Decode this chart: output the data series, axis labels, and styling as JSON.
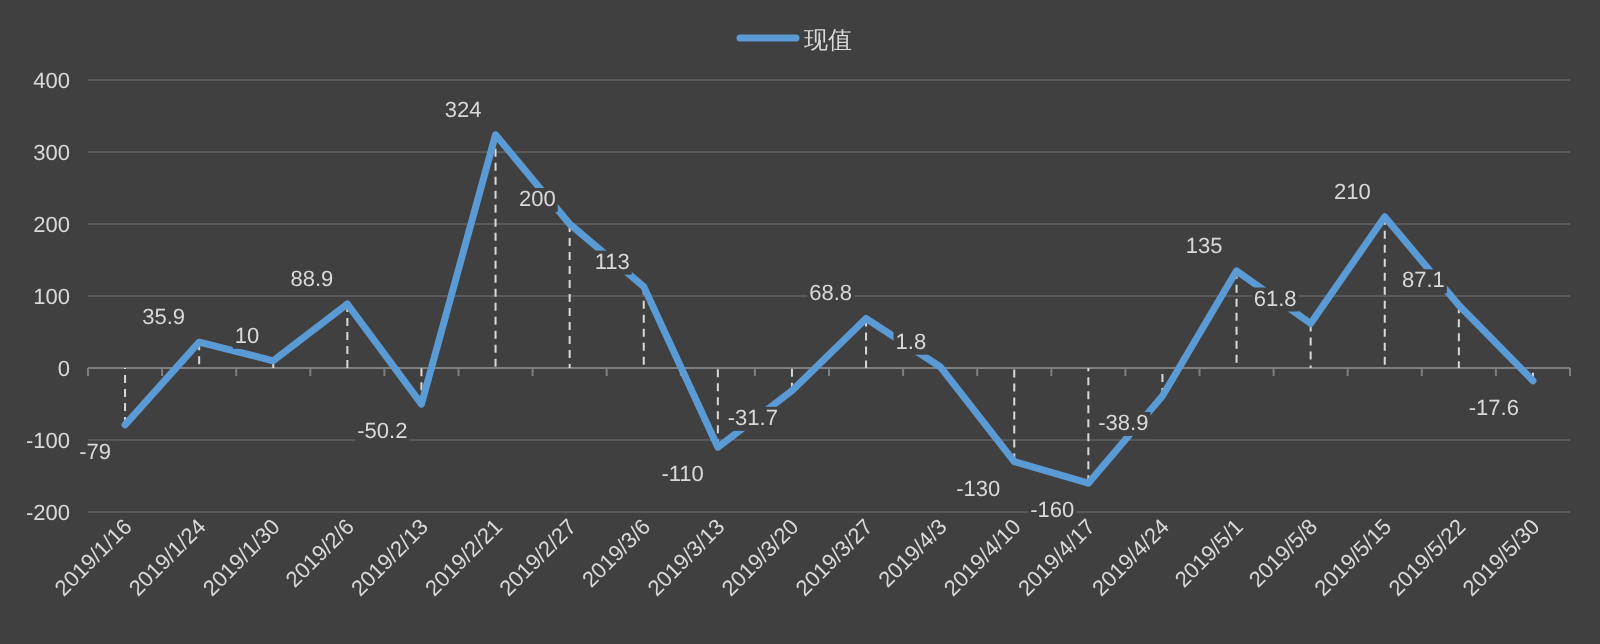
{
  "chart_data": {
    "type": "line",
    "categories": [
      "2019/1/16",
      "2019/1/24",
      "2019/1/30",
      "2019/2/6",
      "2019/2/13",
      "2019/2/21",
      "2019/2/27",
      "2019/3/6",
      "2019/3/13",
      "2019/3/20",
      "2019/3/27",
      "2019/4/3",
      "2019/4/10",
      "2019/4/17",
      "2019/4/24",
      "2019/5/1",
      "2019/5/8",
      "2019/5/15",
      "2019/5/22",
      "2019/5/30"
    ],
    "series": [
      {
        "name": "现值",
        "color": "#5b9bd5",
        "values": [
          -79,
          35.9,
          10,
          88.9,
          -50.2,
          324,
          200,
          113,
          -110,
          -31.7,
          68.8,
          1.8,
          -130,
          -160,
          -38.9,
          135,
          61.8,
          210,
          87.1,
          -17.6
        ]
      }
    ],
    "ylim": [
      -200,
      400
    ],
    "yticks": [
      -200,
      -100,
      0,
      100,
      200,
      300,
      400
    ],
    "grid": "y",
    "legend": "top",
    "data_labels": true,
    "line_style": "solid"
  }
}
